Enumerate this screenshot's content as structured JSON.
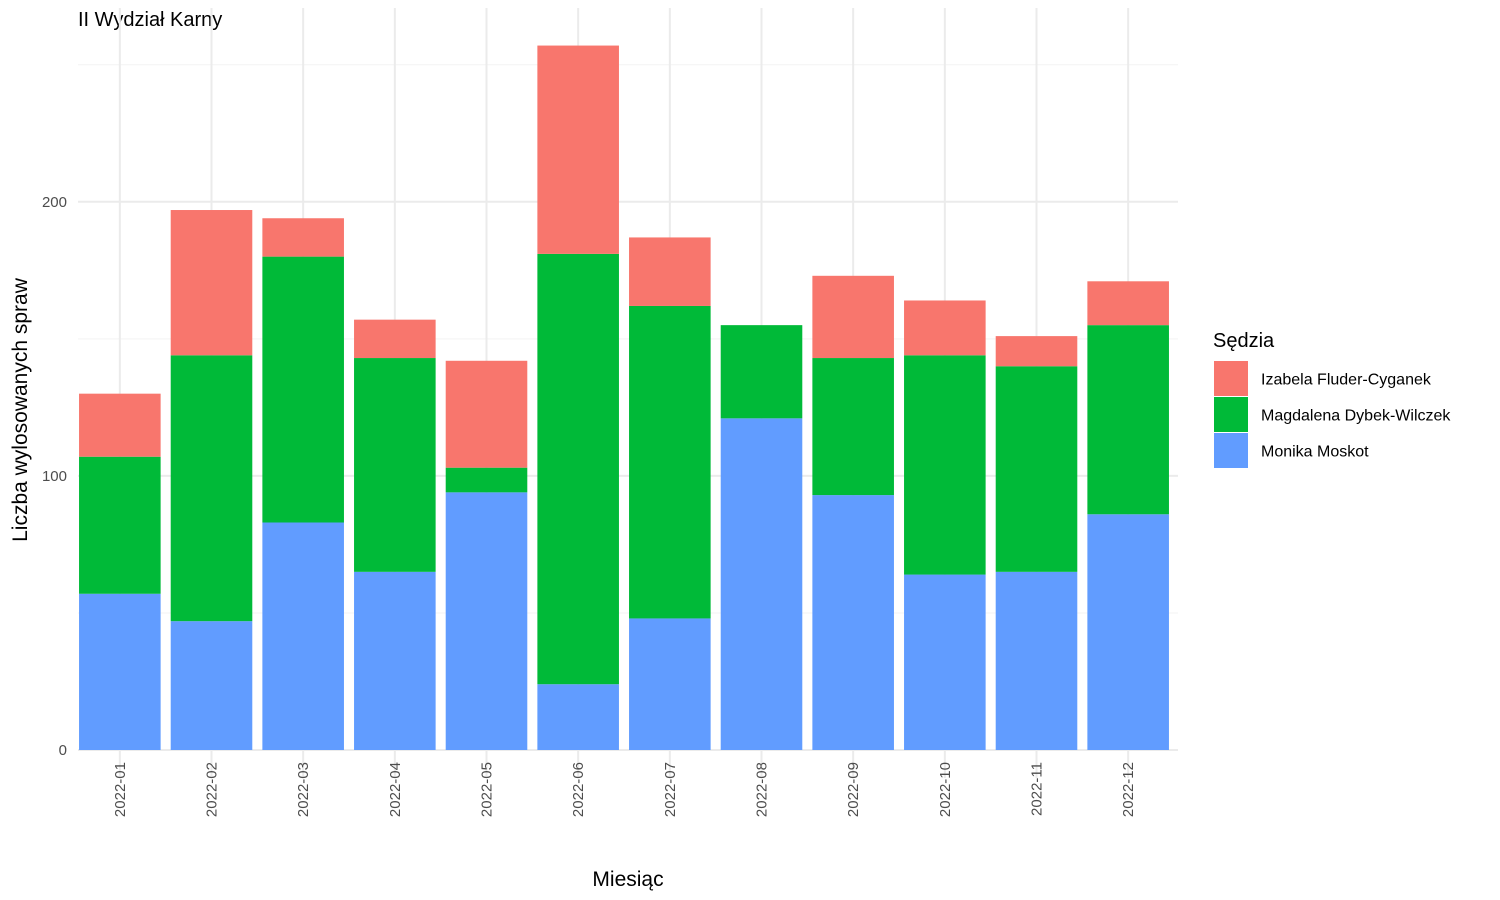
{
  "chart_data": {
    "type": "bar",
    "stacked": true,
    "title": "II Wydział Karny",
    "xlabel": "Miesiąc",
    "ylabel": "Liczba wylosowanych spraw",
    "ylim": [
      0,
      257
    ],
    "yticks": [
      0,
      100,
      200
    ],
    "ytick_labels": [
      "0",
      "100",
      "200"
    ],
    "grid": true,
    "legend_title": "Sędzia",
    "legend_position": "right",
    "categories": [
      "2022-01",
      "2022-02",
      "2022-03",
      "2022-04",
      "2022-05",
      "2022-06",
      "2022-07",
      "2022-08",
      "2022-09",
      "2022-10",
      "2022-11",
      "2022-12"
    ],
    "series": [
      {
        "name": "Izabela Fluder-Cyganek",
        "color": "#F8766D",
        "values": [
          23,
          53,
          14,
          14,
          39,
          76,
          25,
          0,
          30,
          20,
          11,
          16
        ]
      },
      {
        "name": "Magdalena Dybek-Wilczek",
        "color": "#00BA38",
        "values": [
          50,
          97,
          97,
          78,
          9,
          157,
          114,
          34,
          50,
          80,
          75,
          69
        ]
      },
      {
        "name": "Monika Moskot",
        "color": "#619CFF",
        "values": [
          57,
          47,
          83,
          65,
          94,
          24,
          48,
          121,
          93,
          64,
          65,
          86
        ]
      }
    ],
    "stack_order_bottom_to_top": [
      "Monika Moskot",
      "Magdalena Dybek-Wilczek",
      "Izabela Fluder-Cyganek"
    ]
  }
}
